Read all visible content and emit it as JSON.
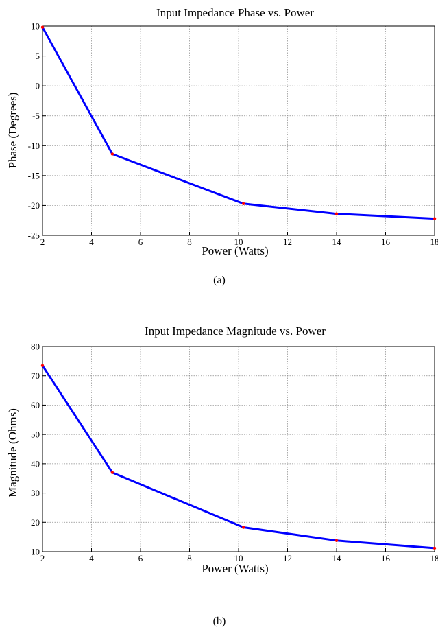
{
  "chart_data": [
    {
      "type": "line",
      "title": "Input Impedance Phase vs. Power",
      "xlabel": "Power (Watts)",
      "ylabel": "Phase (Degrees)",
      "caption": "(a)",
      "xlim": [
        2,
        18
      ],
      "ylim": [
        -25,
        10
      ],
      "xticks": [
        2,
        4,
        6,
        8,
        10,
        12,
        14,
        16,
        18
      ],
      "yticks": [
        -25,
        -20,
        -15,
        -10,
        -5,
        0,
        5,
        10
      ],
      "grid": true,
      "line_color": "#0000ff",
      "marker_color": "#ff0000",
      "series": [
        {
          "x": [
            2,
            4.85,
            10.2,
            14,
            18
          ],
          "y": [
            9.8,
            -11.4,
            -19.7,
            -21.4,
            -22.2
          ]
        }
      ]
    },
    {
      "type": "line",
      "title": "Input Impedance Magnitude vs. Power",
      "xlabel": "Power (Watts)",
      "ylabel": "Magnitude (Ohms)",
      "caption": "(b)",
      "xlim": [
        2,
        18
      ],
      "ylim": [
        10,
        80
      ],
      "xticks": [
        2,
        4,
        6,
        8,
        10,
        12,
        14,
        16,
        18
      ],
      "yticks": [
        10,
        20,
        30,
        40,
        50,
        60,
        70,
        80
      ],
      "grid": true,
      "line_color": "#0000ff",
      "marker_color": "#ff0000",
      "series": [
        {
          "x": [
            2,
            4.85,
            10.2,
            14,
            18
          ],
          "y": [
            73.5,
            37,
            18.3,
            13.8,
            11.2
          ]
        }
      ]
    }
  ]
}
